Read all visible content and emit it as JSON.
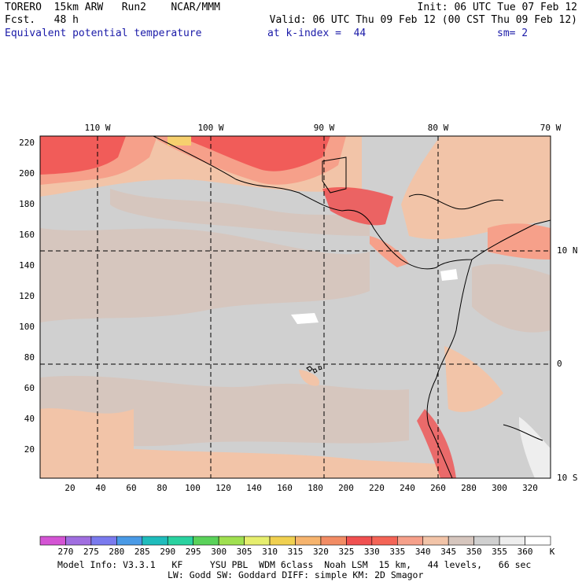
{
  "header": {
    "model": "TORERO  15km ARW   Run2    NCAR/MMM",
    "init": "Init: 06 UTC Tue 07 Feb 12",
    "fcst": "Fcst.   48 h",
    "valid": "Valid: 06 UTC Thu 09 Feb 12 (00 CST Thu 09 Feb 12)",
    "field": "Equivalent potential temperature",
    "level": "at k-index =  44",
    "smooth": "sm= 2"
  },
  "map": {
    "lon_labels": [
      "110 W",
      "100 W",
      "90 W",
      "80 W",
      "70 W"
    ],
    "lat_labels": [
      "10 N",
      "0",
      "10 S"
    ],
    "y_ticks": [
      "20",
      "40",
      "60",
      "80",
      "100",
      "120",
      "140",
      "160",
      "180",
      "200",
      "220"
    ],
    "x_ticks": [
      "20",
      "40",
      "60",
      "80",
      "100",
      "120",
      "140",
      "160",
      "180",
      "200",
      "220",
      "240",
      "260",
      "280",
      "300",
      "320"
    ]
  },
  "colorbar": {
    "labels": [
      "270",
      "275",
      "280",
      "285",
      "290",
      "295",
      "300",
      "305",
      "310",
      "315",
      "320",
      "325",
      "330",
      "335",
      "340",
      "345",
      "350",
      "355",
      "360"
    ],
    "unit": "K",
    "colors": [
      "#d454d4",
      "#a06ee0",
      "#7a7aee",
      "#4a9ae6",
      "#1fbcbc",
      "#2ad2a0",
      "#5ad25a",
      "#a0e050",
      "#e6ee6e",
      "#f0d050",
      "#f6b46e",
      "#f28c64",
      "#f05050",
      "#f46456",
      "#f6a08a",
      "#f2c4a8",
      "#d6c6be",
      "#d0d0d0",
      "#eeeeee",
      "#ffffff"
    ]
  },
  "footer": {
    "line1": "Model Info: V3.3.1   KF     YSU PBL  WDM 6class  Noah LSM  15 km,   44 levels,   66 sec",
    "line2": "LW: Godd SW: Goddard DIFF: simple KM: 2D Smagor"
  }
}
